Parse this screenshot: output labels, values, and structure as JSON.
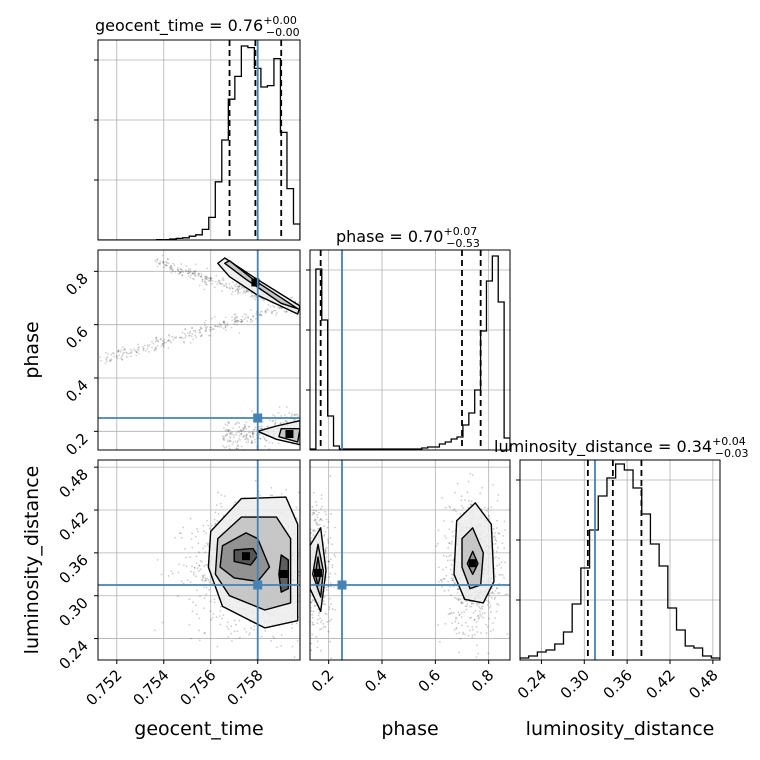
{
  "colors": {
    "truth": "#4682b4",
    "hist": "#000000",
    "grid": "#b0b0b0",
    "density": "#555555"
  },
  "chart_data": {
    "type": "corner",
    "parameters": [
      "geocent_time",
      "phase",
      "luminosity_distance"
    ],
    "truths": {
      "geocent_time": 0.758,
      "phase": 0.25,
      "luminosity_distance": 0.315
    },
    "axis_labels": {
      "geocent_time": "geocent_time",
      "phase": "phase",
      "luminosity_distance": "luminosity_distance"
    },
    "ranges": {
      "geocent_time": [
        0.7512,
        0.7598
      ],
      "phase": [
        0.13,
        0.88
      ],
      "luminosity_distance": [
        0.21,
        0.49
      ]
    },
    "ticks": {
      "geocent_time": [
        0.752,
        0.754,
        0.756,
        0.758
      ],
      "phase": [
        0.2,
        0.4,
        0.6,
        0.8
      ],
      "luminosity_distance": [
        0.24,
        0.3,
        0.36,
        0.42,
        0.48
      ]
    },
    "tick_labels": {
      "geocent_time": [
        "0.752",
        "0.754",
        "0.756",
        "0.758"
      ],
      "phase": [
        "0.2",
        "0.4",
        "0.6",
        "0.8"
      ],
      "luminosity_distance": [
        "0.24",
        "0.30",
        "0.36",
        "0.42",
        "0.48"
      ]
    },
    "titles": [
      {
        "param": "geocent_time",
        "main": "geocent_time = 0.76",
        "sup": "+0.00",
        "sub": "−0.00"
      },
      {
        "param": "phase",
        "main": "phase = 0.70",
        "sup": "+0.07",
        "sub": "−0.53"
      },
      {
        "param": "luminosity_distance",
        "main": "luminosity_distance = 0.34",
        "sup": "+0.04",
        "sub": "−0.03"
      }
    ],
    "quantiles": {
      "geocent_time": [
        0.7568,
        0.7579,
        0.759
      ],
      "phase": [
        0.17,
        0.7,
        0.77
      ],
      "luminosity_distance": [
        0.305,
        0.34,
        0.38
      ]
    },
    "marginals": {
      "geocent_time": [
        0,
        0,
        0,
        0,
        0,
        0,
        0,
        0,
        0,
        0.002,
        0.002,
        0.005,
        0.008,
        0.011,
        0.019,
        0.026,
        0.053,
        0.113,
        0.291,
        0.5,
        0.704,
        0.818,
        0.97,
        0.962,
        0.858,
        0.765,
        0.772,
        0.907,
        0.538,
        0.257,
        0.08
      ],
      "phase": [
        0.005,
        0.905,
        0.65,
        0.17,
        0.02,
        0.005,
        0.005,
        0.005,
        0.005,
        0.005,
        0.005,
        0.005,
        0.005,
        0.005,
        0.005,
        0.005,
        0.005,
        0.005,
        0.005,
        0.01,
        0.015,
        0.015,
        0.03,
        0.04,
        0.055,
        0.065,
        0.125,
        0.185,
        0.3,
        0.595,
        0.845,
        0.97,
        0.74,
        0.06
      ],
      "luminosity_distance": [
        0.01,
        0.02,
        0.04,
        0.05,
        0.08,
        0.14,
        0.28,
        0.46,
        0.65,
        0.82,
        0.91,
        0.98,
        0.95,
        0.86,
        0.73,
        0.58,
        0.47,
        0.26,
        0.15,
        0.07,
        0.06,
        0.02,
        0.01
      ]
    },
    "credible_contours": {
      "phase_vs_geocent_time": [
        {
          "level": 0.393,
          "paths": [
            [
              [
                0.7568,
                0.84
              ],
              [
                0.7578,
                0.77
              ],
              [
                0.7597,
                0.66
              ],
              [
                0.759,
                0.68
              ],
              [
                0.7575,
                0.77
              ],
              [
                0.7566,
                0.83
              ]
            ],
            [
              [
                0.7589,
                0.18
              ],
              [
                0.7597,
                0.16
              ],
              [
                0.7598,
                0.21
              ],
              [
                0.759,
                0.21
              ]
            ]
          ]
        },
        {
          "level": 0.865,
          "paths": [
            [
              [
                0.7566,
                0.85
              ],
              [
                0.7578,
                0.78
              ],
              [
                0.7598,
                0.67
              ],
              [
                0.7597,
                0.64
              ],
              [
                0.758,
                0.71
              ],
              [
                0.7568,
                0.78
              ],
              [
                0.7563,
                0.83
              ]
            ],
            [
              [
                0.758,
                0.2
              ],
              [
                0.7588,
                0.17
              ],
              [
                0.7598,
                0.15
              ],
              [
                0.7598,
                0.24
              ],
              [
                0.7588,
                0.22
              ]
            ]
          ]
        }
      ],
      "luminosity_distance_vs_geocent_time": [
        {
          "level": 0.393,
          "paths": [
            [
              [
                0.757,
                0.364
              ],
              [
                0.7578,
                0.366
              ],
              [
                0.758,
                0.356
              ],
              [
                0.7577,
                0.343
              ],
              [
                0.757,
                0.348
              ]
            ],
            [
              [
                0.759,
                0.357
              ],
              [
                0.7593,
                0.35
              ],
              [
                0.7593,
                0.31
              ],
              [
                0.759,
                0.305
              ],
              [
                0.7589,
                0.33
              ]
            ]
          ]
        },
        {
          "level": 0.675,
          "paths": [
            [
              [
                0.7565,
                0.37
              ],
              [
                0.7575,
                0.388
              ],
              [
                0.758,
                0.38
              ],
              [
                0.7585,
                0.34
              ],
              [
                0.758,
                0.32
              ],
              [
                0.757,
                0.325
              ],
              [
                0.7564,
                0.34
              ]
            ]
          ]
        },
        {
          "level": 0.865,
          "paths": [
            [
              [
                0.7563,
                0.38
              ],
              [
                0.7573,
                0.41
              ],
              [
                0.7588,
                0.41
              ],
              [
                0.7594,
                0.38
              ],
              [
                0.7594,
                0.29
              ],
              [
                0.7583,
                0.28
              ],
              [
                0.7568,
                0.3
              ],
              [
                0.7562,
                0.33
              ]
            ]
          ]
        },
        {
          "level": 0.989,
          "paths": [
            [
              [
                0.756,
                0.39
              ],
              [
                0.7573,
                0.436
              ],
              [
                0.7592,
                0.438
              ],
              [
                0.7597,
                0.4
              ],
              [
                0.7597,
                0.265
              ],
              [
                0.7583,
                0.255
              ],
              [
                0.7565,
                0.285
              ],
              [
                0.7559,
                0.34
              ]
            ]
          ]
        }
      ],
      "luminosity_distance_vs_phase": [
        {
          "level": 0.393,
          "paths": [
            [
              [
                0.16,
                0.354
              ],
              [
                0.17,
                0.33
              ],
              [
                0.16,
                0.314
              ],
              [
                0.15,
                0.33
              ]
            ],
            [
              [
                0.74,
                0.362
              ],
              [
                0.76,
                0.345
              ],
              [
                0.74,
                0.33
              ],
              [
                0.72,
                0.345
              ]
            ]
          ]
        },
        {
          "level": 0.675,
          "paths": [
            [
              [
                0.16,
                0.372
              ],
              [
                0.18,
                0.335
              ],
              [
                0.17,
                0.298
              ],
              [
                0.14,
                0.33
              ]
            ],
            [
              [
                0.74,
                0.395
              ],
              [
                0.78,
                0.36
              ],
              [
                0.77,
                0.315
              ],
              [
                0.73,
                0.31
              ],
              [
                0.7,
                0.34
              ],
              [
                0.7,
                0.38
              ]
            ]
          ]
        },
        {
          "level": 0.865,
          "paths": [
            [
              [
                0.17,
                0.395
              ],
              [
                0.19,
                0.335
              ],
              [
                0.17,
                0.278
              ],
              [
                0.13,
                0.31
              ],
              [
                0.13,
                0.37
              ]
            ],
            [
              [
                0.75,
                0.43
              ],
              [
                0.81,
                0.4
              ],
              [
                0.82,
                0.32
              ],
              [
                0.78,
                0.29
              ],
              [
                0.71,
                0.295
              ],
              [
                0.67,
                0.33
              ],
              [
                0.68,
                0.405
              ]
            ]
          ]
        }
      ]
    },
    "grid": true
  }
}
